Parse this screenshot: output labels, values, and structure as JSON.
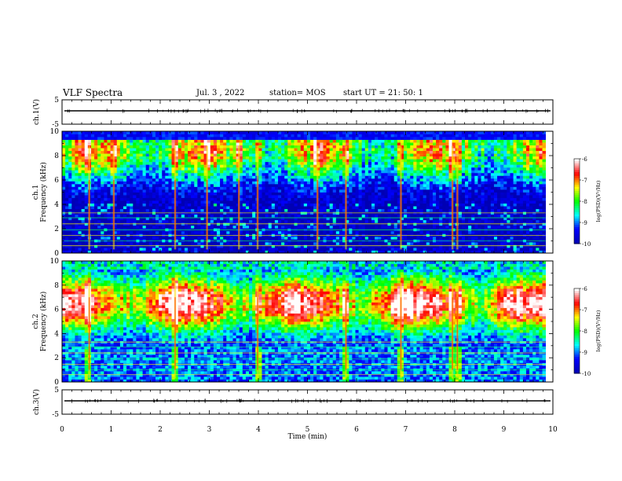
{
  "header": {
    "title": "VLF Spectra",
    "date": "Jul. 3 , 2022",
    "station": "station= MOS",
    "start": "start UT = 21: 50: 1"
  },
  "colors": {
    "background": "#ffffff",
    "axes": "#000000",
    "colormap": [
      "#0000b4",
      "#0000ff",
      "#00ffff",
      "#00ff00",
      "#ffff00",
      "#ff0000",
      "#ffffff"
    ]
  },
  "chart_data": [
    {
      "type": "line",
      "panel": "ch1-waveform",
      "ylabel": "ch.1(V)",
      "xlim": [
        0,
        10
      ],
      "ylim": [
        -5,
        5
      ],
      "yticks": [
        -5,
        5
      ],
      "trace_level": 0
    },
    {
      "type": "heatmap",
      "panel": "ch1-spectrogram",
      "ylabel_top": "ch.1",
      "ylabel": "Frequency (kHz)",
      "xlim": [
        0,
        9.85
      ],
      "ylim": [
        0,
        10
      ],
      "yticks": [
        0,
        2,
        4,
        6,
        8,
        10
      ],
      "colorbar": {
        "label": "log(PSD)(V²/Hz)",
        "range": [
          -10,
          -6
        ],
        "ticks": [
          -10,
          -9,
          -8,
          -7,
          -6
        ]
      },
      "spectral_band_peak_kHz": 8.5,
      "bright_bursts_min": [
        0.55,
        1.05,
        2.3,
        2.95,
        3.6,
        3.98,
        5.2,
        5.78,
        6.9,
        7.95,
        8.05
      ]
    },
    {
      "type": "heatmap",
      "panel": "ch2-spectrogram",
      "ylabel_top": "ch.2",
      "ylabel": "Frequency (kHz)",
      "xlim": [
        0,
        9.85
      ],
      "ylim": [
        0,
        10
      ],
      "yticks": [
        0,
        2,
        4,
        6,
        8,
        10
      ],
      "colorbar": {
        "label": "log(PSD)(V²/Hz)",
        "range": [
          -10,
          -6
        ],
        "ticks": [
          -10,
          -9,
          -8,
          -7,
          -6
        ]
      },
      "spectral_band_peak_kHz": 6.5,
      "bright_bursts_min": [
        0.55,
        2.3,
        3.98,
        5.78,
        6.9,
        7.95,
        8.05
      ]
    },
    {
      "type": "line",
      "panel": "ch3-waveform",
      "ylabel": "ch.3(V)",
      "xlabel": "Time (min)",
      "xlim": [
        0,
        10
      ],
      "ylim": [
        -5,
        5
      ],
      "yticks": [
        -5,
        5
      ],
      "xticks": [
        0,
        1,
        2,
        3,
        4,
        5,
        6,
        7,
        8,
        9,
        10
      ],
      "trace_level": 0
    }
  ]
}
